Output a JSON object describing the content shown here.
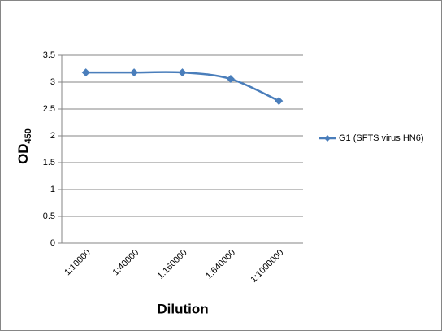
{
  "chart_data": {
    "type": "line",
    "xlabel": "Dilution",
    "ylabel": "OD",
    "ylabel_subscript": "450",
    "categories": [
      "1:10000",
      "1:40000",
      "1:160000",
      "1:640000",
      "1:1000000"
    ],
    "series": [
      {
        "name": "G1 (SFTS virus HN6)",
        "color": "#4a7ebb",
        "values": [
          3.18,
          3.18,
          3.18,
          3.06,
          2.65
        ]
      }
    ],
    "ylim": [
      0,
      3.5
    ],
    "yticks": [
      0,
      0.5,
      1,
      1.5,
      2,
      2.5,
      3,
      3.5
    ],
    "grid": true,
    "smooth": true,
    "legend": "right"
  }
}
